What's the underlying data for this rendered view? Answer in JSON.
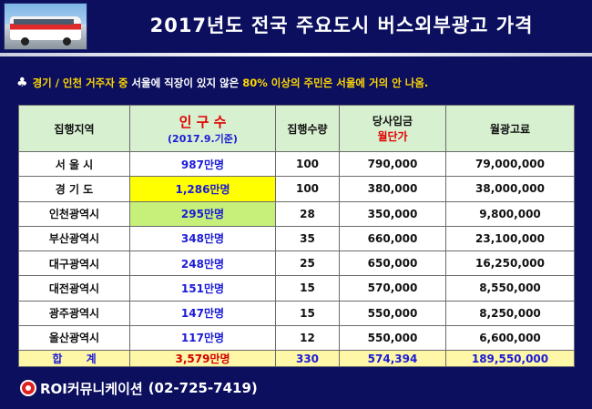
{
  "header": {
    "title": "2017년도 전국 주요도시 버스외부광고 가격"
  },
  "note": {
    "icon": "club-suit-icon",
    "segments": [
      {
        "text": "경기 / 인천 거주자 중 ",
        "color": "#ffd700"
      },
      {
        "text": "서울에 직장이 있지 않은 ",
        "color": "#ffffff"
      },
      {
        "text": "80% 이상의 주민은 서울에 거의 안 나옴.",
        "color": "#ffd700"
      }
    ]
  },
  "table": {
    "headers": {
      "region": "집행지역",
      "population_main": "인 구 수",
      "population_sub": "(2017.9.기준)",
      "count": "집행수량",
      "price_main": "당사입금",
      "price_sub": "월단가",
      "monthly": "월광고료"
    },
    "rows": [
      {
        "region": "서 울 시",
        "population": "987만명",
        "count": "100",
        "unit_price": "790,000",
        "monthly": "79,000,000",
        "highlight": ""
      },
      {
        "region": "경 기 도",
        "population": "1,286만명",
        "count": "100",
        "unit_price": "380,000",
        "monthly": "38,000,000",
        "highlight": "yellow"
      },
      {
        "region": "인천광역시",
        "population": "295만명",
        "count": "28",
        "unit_price": "350,000",
        "monthly": "9,800,000",
        "highlight": "green"
      },
      {
        "region": "부산광역시",
        "population": "348만명",
        "count": "35",
        "unit_price": "660,000",
        "monthly": "23,100,000",
        "highlight": ""
      },
      {
        "region": "대구광역시",
        "population": "248만명",
        "count": "25",
        "unit_price": "650,000",
        "monthly": "16,250,000",
        "highlight": ""
      },
      {
        "region": "대전광역시",
        "population": "151만명",
        "count": "15",
        "unit_price": "570,000",
        "monthly": "8,550,000",
        "highlight": ""
      },
      {
        "region": "광주광역시",
        "population": "147만명",
        "count": "15",
        "unit_price": "550,000",
        "monthly": "8,250,000",
        "highlight": ""
      },
      {
        "region": "울산광역시",
        "population": "117만명",
        "count": "12",
        "unit_price": "550,000",
        "monthly": "6,600,000",
        "highlight": ""
      }
    ],
    "total": {
      "label": "합 계",
      "population": "3,579만명",
      "count": "330",
      "unit_price": "574,394",
      "monthly": "189,550,000"
    }
  },
  "footer": {
    "company": "ROI커뮤니케이션",
    "phone": "(02-725-7419)"
  },
  "colors": {
    "background": "#0b0f5e",
    "header_row": "#d7f0d0",
    "total_row": "#fff7a8",
    "highlight_yellow": "#ffff00",
    "highlight_green": "#c6f07a",
    "blue_text": "#1b1bd6",
    "red_text": "#e00000"
  }
}
